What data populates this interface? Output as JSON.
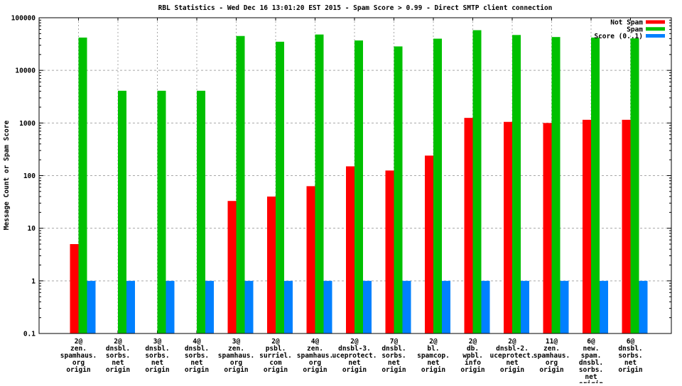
{
  "chart_data": {
    "type": "bar",
    "title": "RBL Statistics - Wed Dec 16 13:01:20 EST 2015 - Spam Score > 0.99 - Direct SMTP client connection",
    "ylabel": "Message Count or Spam Score",
    "y_scale": "log",
    "ylim": [
      0.1,
      100000
    ],
    "y_tick_labels": [
      "100000",
      "10000",
      "1000",
      "100",
      "10",
      "1",
      "0.1"
    ],
    "grid": true,
    "legend_position": "top-right-inside",
    "colors": {
      "not_spam": "#ff0000",
      "spam": "#00c000",
      "score": "#0080ff",
      "gridline": "#a8a8a8",
      "border": "#000000",
      "background": "#ffffff"
    },
    "series": [
      {
        "name": "Not Spam",
        "key": "not_spam",
        "color": "#ff0000"
      },
      {
        "name": "Spam",
        "key": "spam",
        "color": "#00c000"
      },
      {
        "name": "Score (0..1)",
        "key": "score",
        "color": "#0080ff"
      }
    ],
    "groups": [
      {
        "label_lines": [
          "2@",
          "zen.",
          "spamhaus.",
          "org",
          "origin"
        ],
        "not_spam": 5,
        "spam": 42000,
        "score": 1
      },
      {
        "label_lines": [
          "2@",
          "dnsbl.",
          "sorbs.",
          "net",
          "origin"
        ],
        "not_spam": 0,
        "spam": 4100,
        "score": 1
      },
      {
        "label_lines": [
          "3@",
          "dnsbl.",
          "sorbs.",
          "net",
          "origin"
        ],
        "not_spam": 0,
        "spam": 4100,
        "score": 1
      },
      {
        "label_lines": [
          "4@",
          "dnsbl.",
          "sorbs.",
          "net",
          "origin"
        ],
        "not_spam": 0,
        "spam": 4100,
        "score": 1
      },
      {
        "label_lines": [
          "3@",
          "zen.",
          "spamhaus.",
          "org",
          "origin"
        ],
        "not_spam": 33,
        "spam": 45000,
        "score": 1
      },
      {
        "label_lines": [
          "2@",
          "psbl.",
          "surriel.",
          "com",
          "origin"
        ],
        "not_spam": 40,
        "spam": 35000,
        "score": 1
      },
      {
        "label_lines": [
          "4@",
          "zen.",
          "spamhaus.",
          "org",
          "origin"
        ],
        "not_spam": 63,
        "spam": 48000,
        "score": 1
      },
      {
        "label_lines": [
          "2@",
          "dnsbl-3.",
          "uceprotect.",
          "net",
          "origin"
        ],
        "not_spam": 150,
        "spam": 37000,
        "score": 1
      },
      {
        "label_lines": [
          "7@",
          "dnsbl.",
          "sorbs.",
          "net",
          "origin"
        ],
        "not_spam": 125,
        "spam": 28500,
        "score": 1
      },
      {
        "label_lines": [
          "2@",
          "bl.",
          "spamcop.",
          "net",
          "origin"
        ],
        "not_spam": 240,
        "spam": 40000,
        "score": 1
      },
      {
        "label_lines": [
          "2@",
          "db.",
          "wpbl.",
          "info",
          "origin"
        ],
        "not_spam": 1250,
        "spam": 58000,
        "score": 1
      },
      {
        "label_lines": [
          "2@",
          "dnsbl-2.",
          "uceprotect.",
          "net",
          "origin"
        ],
        "not_spam": 1050,
        "spam": 47000,
        "score": 1
      },
      {
        "label_lines": [
          "11@",
          "zen.",
          "spamhaus.",
          "org",
          "origin"
        ],
        "not_spam": 1000,
        "spam": 43000,
        "score": 1
      },
      {
        "label_lines": [
          "6@",
          "new.",
          "spam.",
          "dnsbl.",
          "sorbs.",
          "net",
          "origin"
        ],
        "not_spam": 1150,
        "spam": 42000,
        "score": 1
      },
      {
        "label_lines": [
          "6@",
          "dnsbl.",
          "sorbs.",
          "net",
          "origin"
        ],
        "not_spam": 1150,
        "spam": 40500,
        "score": 1
      }
    ]
  }
}
